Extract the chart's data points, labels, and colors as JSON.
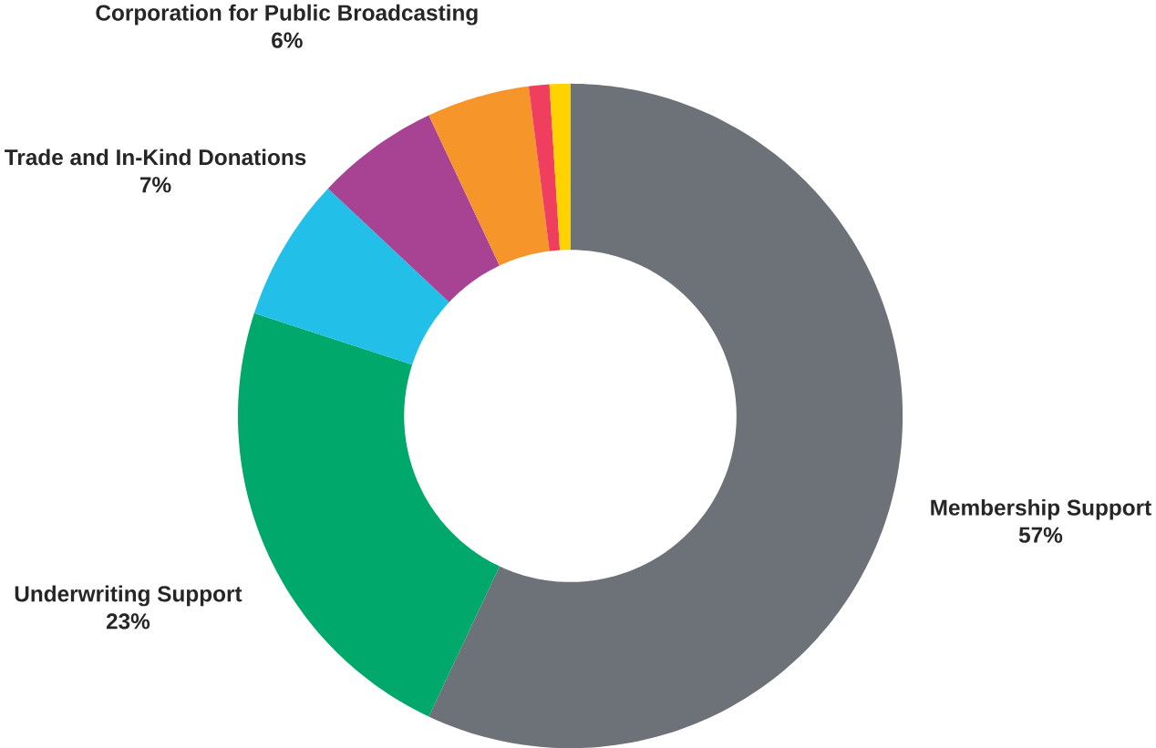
{
  "chart_data": {
    "type": "donut",
    "categories": [
      "Membership Support",
      "Underwriting Support",
      "Trade and In-Kind Donations",
      "Corporation for Public Broadcasting",
      null,
      null,
      null
    ],
    "values": [
      57,
      23,
      7,
      6,
      5,
      1,
      1
    ],
    "value_labels": [
      "57%",
      "23%",
      "7%",
      "6%",
      null,
      null,
      null
    ],
    "colors": [
      "#6d7178",
      "#00a86b",
      "#22c0e8",
      "#a84394",
      "#f6962a",
      "#ef3e5e",
      "#ffd200"
    ]
  }
}
